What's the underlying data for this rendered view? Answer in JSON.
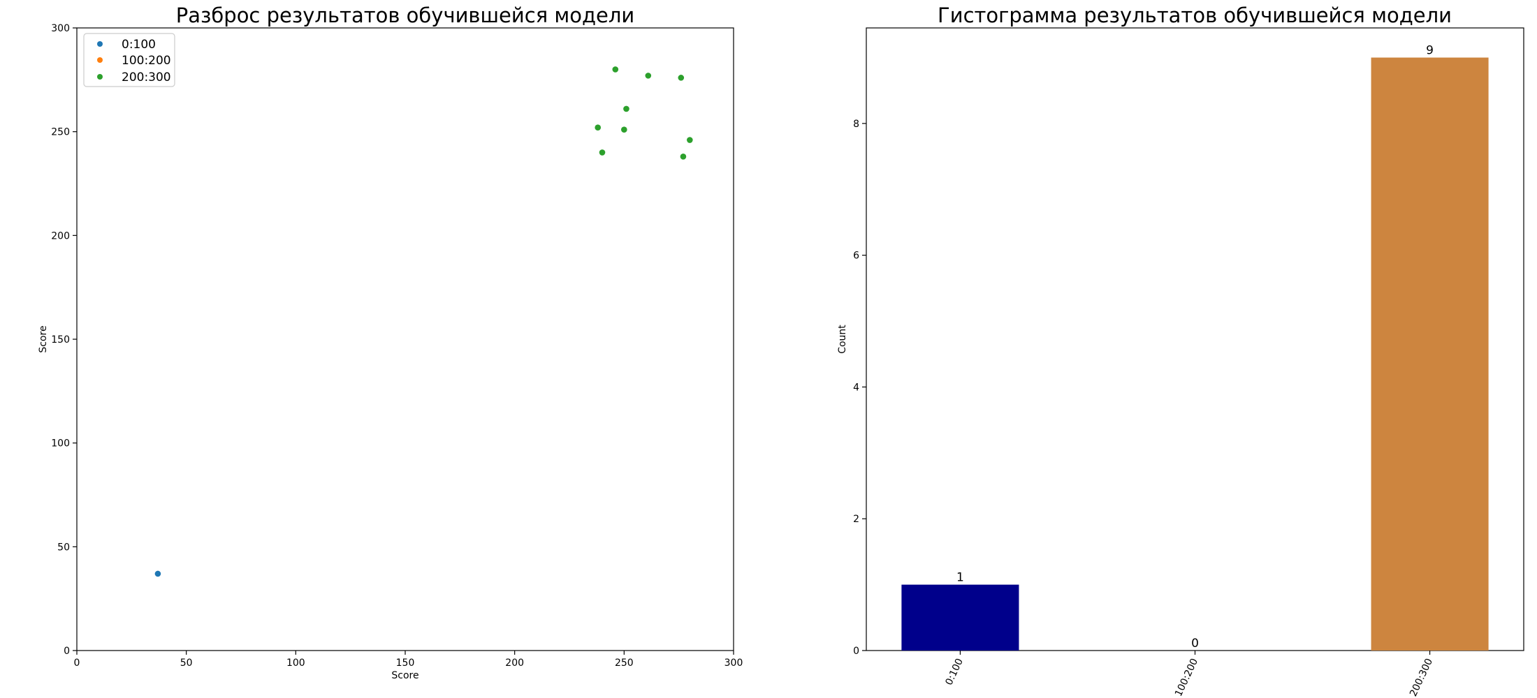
{
  "chart_data": [
    {
      "type": "scatter",
      "title": "Разброс результатов обучившейся модели",
      "xlabel": "Score",
      "ylabel": "Score",
      "xlim": [
        0,
        300
      ],
      "ylim": [
        0,
        300
      ],
      "xticks": [
        "0",
        "50",
        "100",
        "150",
        "200",
        "250",
        "300"
      ],
      "yticks": [
        "0",
        "50",
        "100",
        "150",
        "200",
        "250",
        "300"
      ],
      "legend_position": "top-left",
      "series": [
        {
          "name": "0:100",
          "color": "#1f77b4",
          "points": [
            [
              37,
              37
            ]
          ]
        },
        {
          "name": "100:200",
          "color": "#ff7f0e",
          "points": []
        },
        {
          "name": "200:300",
          "color": "#2ca02c",
          "points": [
            [
              246,
              280
            ],
            [
              261,
              277
            ],
            [
              276,
              276
            ],
            [
              251,
              261
            ],
            [
              238,
              252
            ],
            [
              250,
              251
            ],
            [
              280,
              246
            ],
            [
              240,
              240
            ],
            [
              277,
              238
            ]
          ]
        }
      ]
    },
    {
      "type": "bar",
      "title": "Гистограмма результатов обучившейся модели",
      "xlabel": "",
      "ylabel": "Count",
      "ylim": [
        0,
        9.45
      ],
      "yticks": [
        "0",
        "2",
        "4",
        "6",
        "8"
      ],
      "categories": [
        "0:100",
        "100:200",
        "200:300"
      ],
      "values": [
        1,
        0,
        9
      ],
      "value_labels": [
        "1",
        "0",
        "9"
      ],
      "colors": [
        "#00008b",
        "#4682b4",
        "#cd853f"
      ]
    }
  ]
}
